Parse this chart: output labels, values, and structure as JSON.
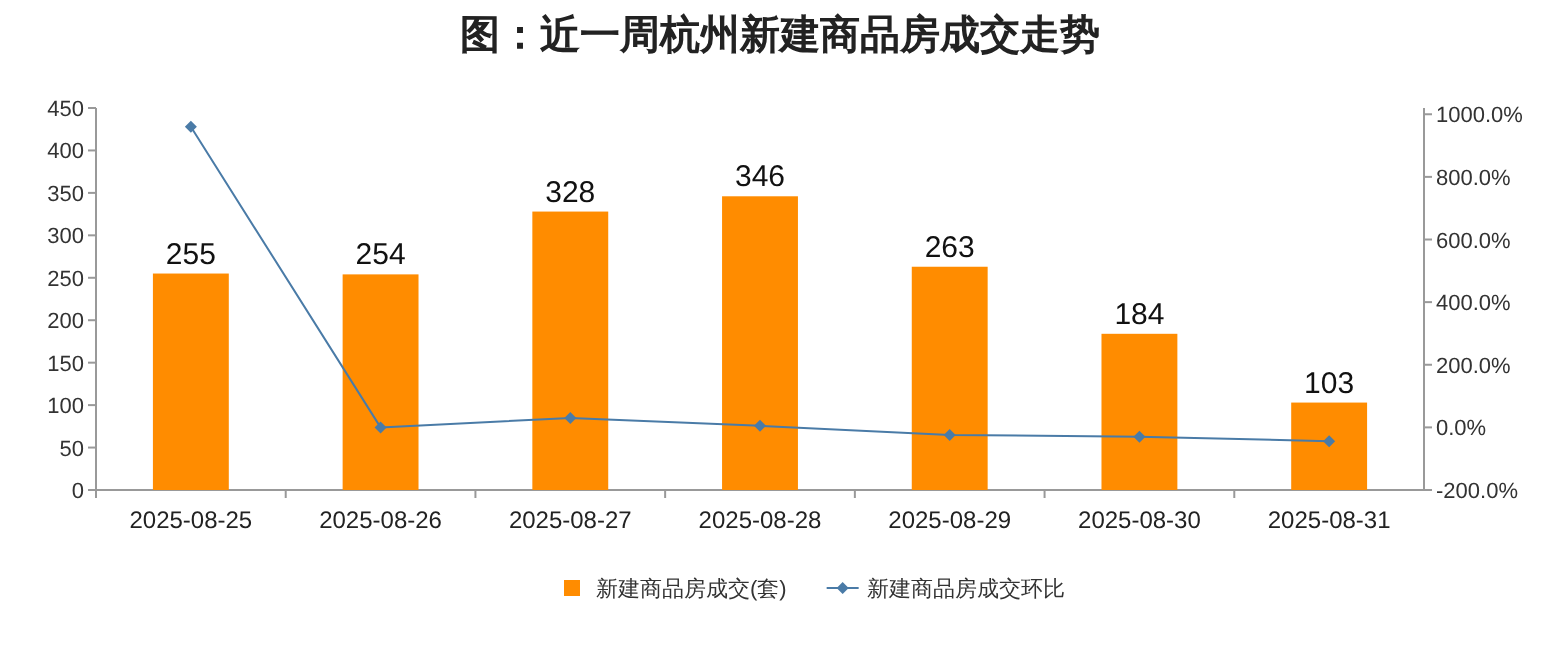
{
  "chart_data": {
    "type": "bar",
    "title": "图：近一周杭州新建商品房成交走势",
    "categories": [
      "2025-08-25",
      "2025-08-26",
      "2025-08-27",
      "2025-08-28",
      "2025-08-29",
      "2025-08-30",
      "2025-08-31"
    ],
    "series": [
      {
        "name": "新建商品房成交(套)",
        "color": "#ff8c00",
        "values": [
          255,
          254,
          328,
          346,
          263,
          184,
          103
        ],
        "value_labels": [
          "255",
          "254",
          "328",
          "346",
          "263",
          "184",
          "103"
        ]
      },
      {
        "name": "新建商品房成交环比",
        "type": "line",
        "axis": "y2",
        "color": "#4a7ba7",
        "marker": "diamond",
        "values": [
          960,
          0,
          30,
          5,
          -24,
          -30,
          -44
        ]
      }
    ],
    "ylim": [
      0,
      450
    ],
    "yticks": [
      0,
      50,
      100,
      150,
      200,
      250,
      300,
      350,
      400,
      450
    ],
    "y2lim": [
      -200,
      1020
    ],
    "y2ticks": [
      {
        "value": -200,
        "label": "-200.0%"
      },
      {
        "value": 0,
        "label": "0.0%"
      },
      {
        "value": 200,
        "label": "200.0%"
      },
      {
        "value": 400,
        "label": "400.0%"
      },
      {
        "value": 600,
        "label": "600.0%"
      },
      {
        "value": 800,
        "label": "800.0%"
      },
      {
        "value": 1000,
        "label": "1000.0%"
      }
    ],
    "legend": "bottom",
    "grid": false
  }
}
